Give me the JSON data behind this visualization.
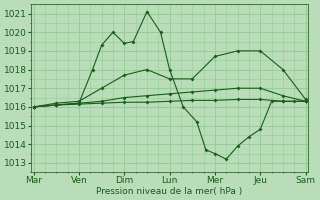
{
  "background_color": "#b8ddb8",
  "grid_color": "#99cc99",
  "line_color": "#1a5c1a",
  "xlabel": "Pression niveau de la mer( hPa )",
  "ylim": [
    1012.5,
    1021.5
  ],
  "yticks": [
    1013,
    1014,
    1015,
    1016,
    1017,
    1018,
    1019,
    1020,
    1021
  ],
  "day_labels": [
    "Mar",
    "Ven",
    "Dim",
    "Lun",
    "Mer",
    "Jeu",
    "Sam"
  ],
  "day_positions": [
    0,
    1,
    2,
    3,
    4,
    5,
    6
  ],
  "series": [
    {
      "x": [
        0.0,
        0.5,
        1.0,
        1.5,
        2.0,
        2.5,
        3.0,
        3.5,
        4.0,
        4.5,
        5.0,
        5.5,
        6.0
      ],
      "y": [
        1016.0,
        1016.1,
        1016.15,
        1016.2,
        1016.25,
        1016.25,
        1016.3,
        1016.35,
        1016.35,
        1016.4,
        1016.4,
        1016.3,
        1016.3
      ]
    },
    {
      "x": [
        0.0,
        0.5,
        1.0,
        1.5,
        2.0,
        2.5,
        3.0,
        3.5,
        4.0,
        4.5,
        5.0,
        5.5,
        6.0
      ],
      "y": [
        1016.0,
        1016.1,
        1016.2,
        1016.3,
        1016.5,
        1016.6,
        1016.7,
        1016.8,
        1016.9,
        1017.0,
        1017.0,
        1016.6,
        1016.3
      ]
    },
    {
      "x": [
        0.0,
        0.5,
        1.0,
        1.5,
        2.0,
        2.5,
        3.0,
        3.5,
        4.0,
        4.5,
        5.0,
        5.5,
        6.0
      ],
      "y": [
        1016.0,
        1016.2,
        1016.3,
        1017.0,
        1017.7,
        1018.0,
        1017.5,
        1017.5,
        1018.7,
        1019.0,
        1019.0,
        1018.0,
        1016.4
      ]
    },
    {
      "x": [
        0.0,
        0.5,
        1.0,
        1.3,
        1.5,
        1.75,
        2.0,
        2.2,
        2.5,
        2.8,
        3.0,
        3.3,
        3.6,
        3.8,
        4.0,
        4.25,
        4.5,
        4.75,
        5.0,
        5.25,
        5.5,
        5.75,
        6.0
      ],
      "y": [
        1016.0,
        1016.1,
        1016.2,
        1018.0,
        1019.3,
        1020.0,
        1019.4,
        1019.5,
        1021.1,
        1020.0,
        1018.0,
        1016.0,
        1015.2,
        1013.7,
        1013.5,
        1013.2,
        1013.9,
        1014.4,
        1014.8,
        1016.3,
        1016.3,
        1016.3,
        1016.3
      ]
    }
  ]
}
